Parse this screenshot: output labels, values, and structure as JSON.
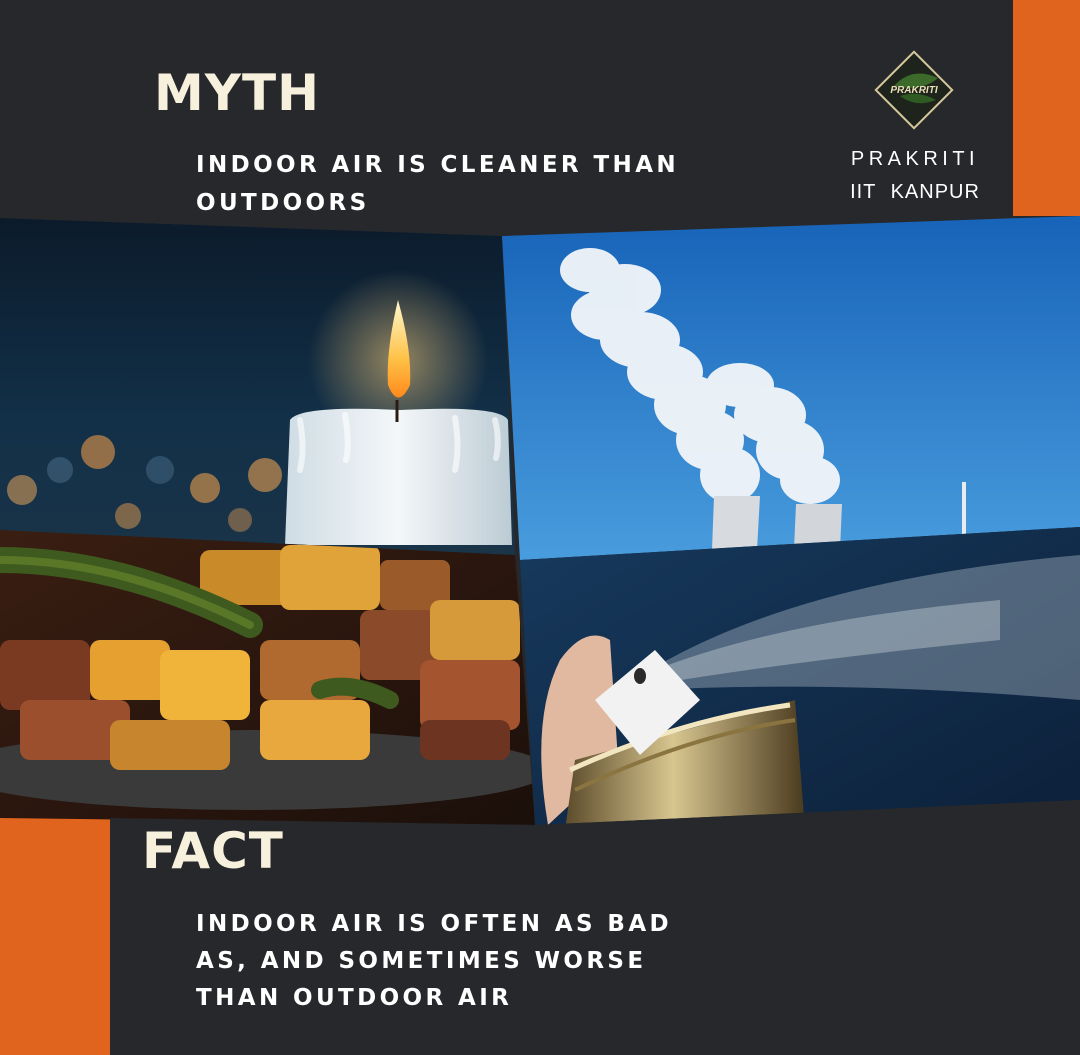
{
  "myth": {
    "title": "MYTH",
    "text": "INDOOR AIR IS CLEANER THAN OUTDOORS"
  },
  "fact": {
    "title": "FACT",
    "text_lines": [
      "INDOOR AIR IS OFTEN AS BAD",
      "AS, AND SOMETIMES WORSE",
      "THAN OUTDOOR AIR"
    ]
  },
  "brand": {
    "logo_text": "PRAKRITI",
    "name": "PRAKRITI",
    "sub": "IIT KANPUR"
  },
  "images": {
    "top_left": "candle-photo",
    "top_right": "cooling-towers-photo",
    "bottom_left": "cooked-food-photo",
    "bottom_right": "aerosol-spray-photo"
  },
  "colors": {
    "background": "#26282b",
    "accent": "#e0631e",
    "title": "#f7f0dc",
    "text": "#ffffff"
  }
}
